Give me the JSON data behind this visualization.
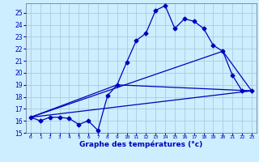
{
  "xlabel": "Graphe des températures (°c)",
  "bg_color": "#cceeff",
  "grid_color": "#aaccdd",
  "line_color": "#0000bb",
  "xlim": [
    -0.5,
    23.5
  ],
  "ylim": [
    15,
    25.8
  ],
  "yticks": [
    15,
    16,
    17,
    18,
    19,
    20,
    21,
    22,
    23,
    24,
    25
  ],
  "xticks": [
    0,
    1,
    2,
    3,
    4,
    5,
    6,
    7,
    8,
    9,
    10,
    11,
    12,
    13,
    14,
    15,
    16,
    17,
    18,
    19,
    20,
    21,
    22,
    23
  ],
  "curve1_x": [
    0,
    1,
    2,
    3,
    4,
    5,
    6,
    7,
    8,
    9,
    10,
    11,
    12,
    13,
    14,
    15,
    16,
    17,
    18,
    19,
    20,
    21,
    22,
    23
  ],
  "curve1_y": [
    16.3,
    16.0,
    16.3,
    16.3,
    16.2,
    15.7,
    16.0,
    15.2,
    18.1,
    19.0,
    20.9,
    22.7,
    23.3,
    25.2,
    25.6,
    23.7,
    24.5,
    24.3,
    23.7,
    22.3,
    21.8,
    19.8,
    18.5,
    18.5
  ],
  "curve2_x": [
    0,
    23
  ],
  "curve2_y": [
    16.3,
    18.5
  ],
  "curve3_x": [
    0,
    9,
    23
  ],
  "curve3_y": [
    16.3,
    19.0,
    18.5
  ],
  "curve4_x": [
    0,
    20,
    23
  ],
  "curve4_y": [
    16.3,
    21.8,
    18.5
  ]
}
